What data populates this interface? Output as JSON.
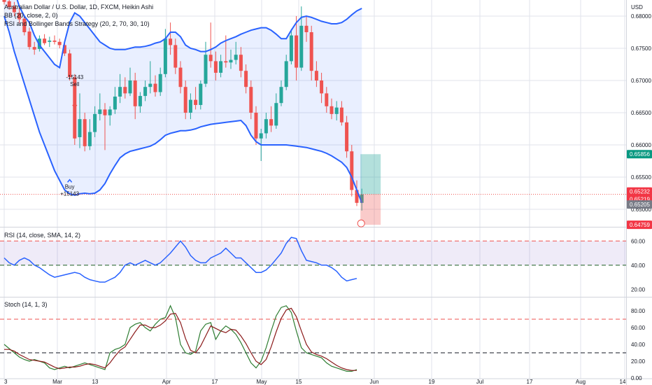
{
  "header": {
    "title": "Australian Dollar / U.S. Dollar, 1D, FXCM, Heikin Ashi",
    "indicator1": "BB (20, close, 2, 0)",
    "indicator2": "RSI and Bollinger Bands Strategy (20, 2, 70, 30, 10)",
    "currency": "USD"
  },
  "rsi_panel": {
    "label": "RSI (14, close, SMA, 14, 2)"
  },
  "stoch_panel": {
    "label": "Stoch (14, 1, 3)"
  },
  "colors": {
    "up": "#26a69a",
    "down": "#ef5350",
    "band": "#2962ff",
    "band_fill": "#2962ff",
    "rsi_fill": "#7e57c2",
    "grid": "#e0e3eb",
    "stoch_k": "#2e7d32",
    "stoch_d": "#8b1a1a"
  },
  "price_badges": [
    {
      "value": "0.65856",
      "color": "#089981"
    },
    {
      "value": "0.65232",
      "color": "#f23645"
    },
    {
      "value": "0.65219",
      "color": "#f23645"
    },
    {
      "value": "0.65205",
      "color": "#787b86"
    },
    {
      "value": "0.64759",
      "color": "#f23645"
    }
  ],
  "chart_data": [
    {
      "type": "candlestick",
      "panel": "price",
      "ylim": [
        0.6475,
        0.6825
      ],
      "yticks": [
        "0.68000",
        "0.67500",
        "0.67000",
        "0.66500",
        "0.66000",
        "0.65500",
        "0.65000"
      ],
      "xticks": [
        "3",
        "Mar",
        "13",
        "Apr",
        "17",
        "May",
        "15",
        "Jun",
        "19",
        "Jul",
        "17",
        "Aug",
        "14"
      ],
      "candles_ohlc": [
        [
          0.6832,
          0.6841,
          0.6818,
          0.6822
        ],
        [
          0.6823,
          0.683,
          0.681,
          0.6814
        ],
        [
          0.6815,
          0.6822,
          0.68,
          0.6806
        ],
        [
          0.6805,
          0.6812,
          0.6788,
          0.6795
        ],
        [
          0.6796,
          0.6802,
          0.677,
          0.6775
        ],
        [
          0.6776,
          0.6782,
          0.6748,
          0.6752
        ],
        [
          0.6752,
          0.676,
          0.674,
          0.6748
        ],
        [
          0.6749,
          0.677,
          0.6745,
          0.6765
        ],
        [
          0.6765,
          0.6772,
          0.6755,
          0.6758
        ],
        [
          0.676,
          0.6768,
          0.6752,
          0.6762
        ],
        [
          0.6762,
          0.677,
          0.6756,
          0.676
        ],
        [
          0.676,
          0.6765,
          0.675,
          0.6755
        ],
        [
          0.6755,
          0.676,
          0.6738,
          0.6742
        ],
        [
          0.6742,
          0.6748,
          0.67,
          0.6705
        ],
        [
          0.6705,
          0.671,
          0.66,
          0.661
        ],
        [
          0.6612,
          0.668,
          0.6595,
          0.664
        ],
        [
          0.664,
          0.665,
          0.659,
          0.6598
        ],
        [
          0.6598,
          0.664,
          0.6592,
          0.662
        ],
        [
          0.662,
          0.666,
          0.6612,
          0.6648
        ],
        [
          0.6648,
          0.668,
          0.6638,
          0.6655
        ],
        [
          0.6655,
          0.6665,
          0.6592,
          0.6646
        ],
        [
          0.6646,
          0.666,
          0.663,
          0.6655
        ],
        [
          0.6655,
          0.669,
          0.6648,
          0.6675
        ],
        [
          0.6675,
          0.671,
          0.6665,
          0.669
        ],
        [
          0.669,
          0.6705,
          0.6672,
          0.668
        ],
        [
          0.668,
          0.672,
          0.6676,
          0.67
        ],
        [
          0.67,
          0.6712,
          0.664,
          0.666
        ],
        [
          0.666,
          0.6682,
          0.665,
          0.6676
        ],
        [
          0.6676,
          0.67,
          0.6668,
          0.669
        ],
        [
          0.669,
          0.673,
          0.668,
          0.6695
        ],
        [
          0.6695,
          0.6708,
          0.6675,
          0.6682
        ],
        [
          0.6682,
          0.672,
          0.6676,
          0.671
        ],
        [
          0.671,
          0.678,
          0.6705,
          0.6765
        ],
        [
          0.6765,
          0.679,
          0.674,
          0.6755
        ],
        [
          0.6755,
          0.6765,
          0.671,
          0.672
        ],
        [
          0.672,
          0.673,
          0.668,
          0.669
        ],
        [
          0.669,
          0.67,
          0.664,
          0.665
        ],
        [
          0.665,
          0.668,
          0.664,
          0.667
        ],
        [
          0.667,
          0.669,
          0.6655,
          0.6662
        ],
        [
          0.6662,
          0.67,
          0.6655,
          0.6695
        ],
        [
          0.6695,
          0.676,
          0.669,
          0.674
        ],
        [
          0.674,
          0.679,
          0.672,
          0.673
        ],
        [
          0.673,
          0.6745,
          0.67,
          0.6712
        ],
        [
          0.6712,
          0.674,
          0.6705,
          0.673
        ],
        [
          0.673,
          0.677,
          0.672,
          0.6728
        ],
        [
          0.6728,
          0.6748,
          0.6718,
          0.6732
        ],
        [
          0.6732,
          0.676,
          0.6725,
          0.674
        ],
        [
          0.674,
          0.6752,
          0.6705,
          0.6715
        ],
        [
          0.6715,
          0.6725,
          0.668,
          0.669
        ],
        [
          0.669,
          0.67,
          0.664,
          0.665
        ],
        [
          0.665,
          0.666,
          0.66,
          0.661
        ],
        [
          0.661,
          0.6625,
          0.6575,
          0.6618
        ],
        [
          0.6618,
          0.665,
          0.661,
          0.664
        ],
        [
          0.664,
          0.666,
          0.662,
          0.663
        ],
        [
          0.663,
          0.668,
          0.6625,
          0.6665
        ],
        [
          0.6665,
          0.67,
          0.666,
          0.669
        ],
        [
          0.669,
          0.674,
          0.6685,
          0.673
        ],
        [
          0.673,
          0.678,
          0.6725,
          0.677
        ],
        [
          0.677,
          0.68,
          0.67,
          0.672
        ],
        [
          0.672,
          0.6815,
          0.6715,
          0.6785
        ],
        [
          0.6785,
          0.68,
          0.676,
          0.6775
        ],
        [
          0.6775,
          0.6785,
          0.67,
          0.6715
        ],
        [
          0.6715,
          0.673,
          0.669,
          0.67
        ],
        [
          0.67,
          0.6712,
          0.6665,
          0.668
        ],
        [
          0.668,
          0.669,
          0.665,
          0.666
        ],
        [
          0.666,
          0.6672,
          0.664,
          0.6648
        ],
        [
          0.6648,
          0.6668,
          0.6638,
          0.6658
        ],
        [
          0.6658,
          0.6668,
          0.663,
          0.6635
        ],
        [
          0.6635,
          0.6645,
          0.658,
          0.659
        ],
        [
          0.659,
          0.66,
          0.652,
          0.653
        ],
        [
          0.653,
          0.6545,
          0.6505,
          0.651
        ],
        [
          0.651,
          0.6532,
          0.6498,
          0.6523
        ]
      ],
      "bb_upper": [
        0.688,
        0.686,
        0.684,
        0.6815,
        0.68,
        0.679,
        0.677,
        0.6755,
        0.6745,
        0.6735,
        0.6725,
        0.672,
        0.676,
        0.679,
        0.6805,
        0.68,
        0.679,
        0.678,
        0.677,
        0.676,
        0.6755,
        0.675,
        0.6748,
        0.6748,
        0.6748,
        0.675,
        0.6752,
        0.6752,
        0.6753,
        0.6755,
        0.6758,
        0.676,
        0.6765,
        0.6775,
        0.6775,
        0.6768,
        0.6755,
        0.675,
        0.6748,
        0.6745,
        0.6745,
        0.6748,
        0.6752,
        0.6758,
        0.6762,
        0.6765,
        0.6768,
        0.6772,
        0.6775,
        0.6778,
        0.678,
        0.6782,
        0.6782,
        0.6778,
        0.6772,
        0.6765,
        0.6765,
        0.6778,
        0.679,
        0.6798,
        0.68,
        0.6798,
        0.6795,
        0.6792,
        0.679,
        0.6788,
        0.6788,
        0.679,
        0.6795,
        0.6802,
        0.6808,
        0.6812
      ],
      "bb_lower": [
        0.68,
        0.6775,
        0.6745,
        0.672,
        0.6695,
        0.667,
        0.6645,
        0.662,
        0.66,
        0.658,
        0.656,
        0.6545,
        0.653,
        0.6524,
        0.6522,
        0.6524,
        0.6525,
        0.6524,
        0.6525,
        0.653,
        0.654,
        0.6555,
        0.6568,
        0.658,
        0.6586,
        0.659,
        0.6592,
        0.6594,
        0.6596,
        0.6598,
        0.6602,
        0.6608,
        0.6615,
        0.6618,
        0.662,
        0.6622,
        0.6622,
        0.6623,
        0.6625,
        0.6628,
        0.663,
        0.6632,
        0.6633,
        0.6634,
        0.6635,
        0.6636,
        0.6637,
        0.6638,
        0.663,
        0.6615,
        0.6605,
        0.66,
        0.66,
        0.66,
        0.66,
        0.66,
        0.66,
        0.6599,
        0.6598,
        0.6597,
        0.6596,
        0.6594,
        0.6592,
        0.659,
        0.6587,
        0.6583,
        0.6578,
        0.6573,
        0.6565,
        0.655,
        0.653,
        0.651
      ],
      "annotations": [
        {
          "text": "Buy",
          "index": 13
        },
        {
          "text": "+15143",
          "index": 13
        },
        {
          "text": "-15143",
          "index": 14
        },
        {
          "text": "Sell",
          "index": 14
        }
      ]
    },
    {
      "type": "line",
      "panel": "rsi",
      "ylim": [
        15,
        70
      ],
      "yticks": [
        "60.00",
        "40.00",
        "20.00"
      ],
      "levels": [
        60,
        40
      ],
      "values": [
        46,
        42,
        40,
        44,
        46,
        44,
        40,
        38,
        35,
        32,
        30,
        31,
        32,
        33,
        34,
        33,
        30,
        28,
        27,
        26,
        26,
        28,
        30,
        34,
        40,
        42,
        40,
        42,
        44,
        42,
        40,
        42,
        46,
        50,
        55,
        60,
        55,
        48,
        44,
        42,
        42,
        46,
        48,
        50,
        54,
        50,
        46,
        46,
        42,
        38,
        34,
        34,
        36,
        40,
        45,
        50,
        58,
        63,
        62,
        52,
        44,
        43,
        42,
        40,
        40,
        38,
        35,
        30,
        27,
        28,
        29
      ]
    },
    {
      "type": "line",
      "panel": "stoch",
      "ylim": [
        0,
        95
      ],
      "yticks": [
        "80.00",
        "60.00",
        "40.00",
        "20.00",
        "0.00"
      ],
      "levels": [
        70,
        30
      ],
      "series": [
        {
          "name": "%K",
          "values": [
            40,
            35,
            30,
            25,
            22,
            20,
            22,
            20,
            18,
            12,
            10,
            12,
            14,
            12,
            14,
            16,
            18,
            16,
            14,
            12,
            10,
            30,
            34,
            36,
            40,
            60,
            64,
            66,
            60,
            56,
            64,
            70,
            72,
            86,
            72,
            40,
            30,
            28,
            32,
            56,
            64,
            66,
            46,
            56,
            62,
            58,
            52,
            42,
            30,
            18,
            12,
            20,
            36,
            56,
            74,
            84,
            86,
            78,
            56,
            36,
            30,
            28,
            26,
            24,
            18,
            14,
            12,
            10,
            8,
            8,
            10
          ]
        },
        {
          "name": "%D",
          "values": [
            34,
            34,
            32,
            28,
            25,
            22,
            21,
            20,
            19,
            16,
            13,
            11,
            12,
            13,
            13,
            14,
            16,
            17,
            16,
            14,
            12,
            18,
            26,
            33,
            37,
            46,
            55,
            63,
            63,
            60,
            60,
            63,
            68,
            76,
            77,
            66,
            47,
            33,
            30,
            38,
            50,
            62,
            59,
            56,
            54,
            58,
            57,
            50,
            41,
            30,
            20,
            16,
            22,
            37,
            55,
            71,
            81,
            83,
            73,
            56,
            40,
            31,
            28,
            26,
            23,
            19,
            15,
            12,
            10,
            9,
            9
          ]
        }
      ]
    }
  ]
}
